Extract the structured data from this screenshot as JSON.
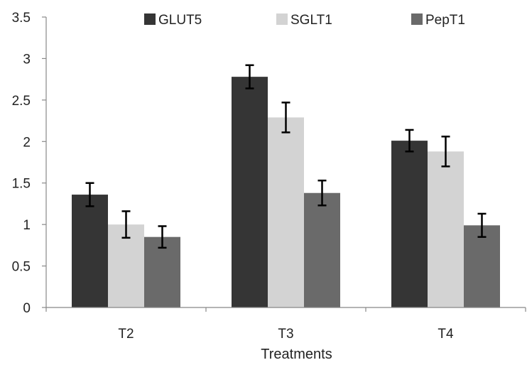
{
  "chart_data": {
    "type": "bar",
    "title": "",
    "xlabel": "Treatments",
    "ylabel": "",
    "ylim": [
      0,
      3.5
    ],
    "yticks": [
      "0",
      "0.5",
      "1",
      "1.5",
      "2",
      "2.5",
      "3",
      "3.5"
    ],
    "categories": [
      "T2",
      "T3",
      "T4"
    ],
    "series": [
      {
        "name": "GLUT5",
        "color": "#353535",
        "values": [
          1.36,
          2.78,
          2.01
        ],
        "errors": [
          0.14,
          0.14,
          0.13
        ]
      },
      {
        "name": "SGLT1",
        "color": "#d3d3d3",
        "values": [
          1.0,
          2.29,
          1.88
        ],
        "errors": [
          0.16,
          0.18,
          0.18
        ]
      },
      {
        "name": "PepT1",
        "color": "#6a6a6a",
        "values": [
          0.85,
          1.38,
          0.99
        ],
        "errors": [
          0.13,
          0.15,
          0.14
        ]
      }
    ],
    "error_bars": true,
    "grid": false,
    "legend_position": "top"
  }
}
